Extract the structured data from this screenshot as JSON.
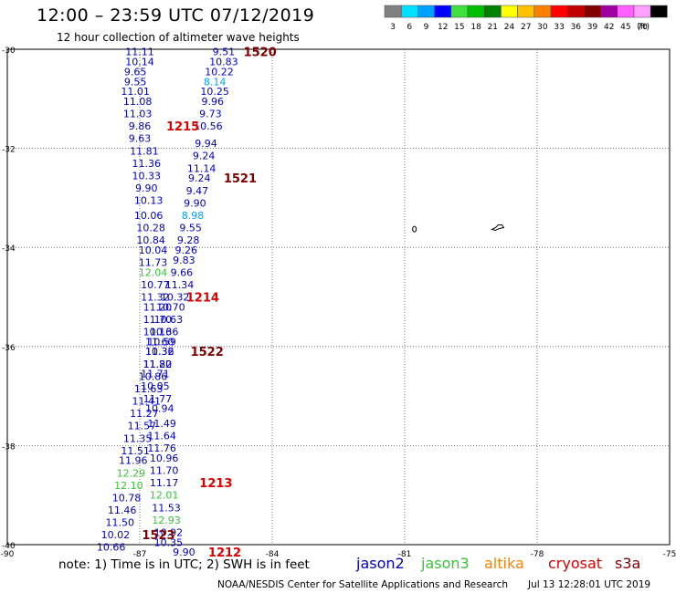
{
  "header": {
    "title": "12:00 – 23:59 UTC 07/12/2019",
    "subtitle": "12 hour collection of altimeter wave heights"
  },
  "legend": {
    "colors": [
      "#808080",
      "#00e0ff",
      "#00a0ff",
      "#0000ff",
      "#40e040",
      "#00c000",
      "#008000",
      "#ffff00",
      "#ffc000",
      "#ff8000",
      "#ff0000",
      "#c00000",
      "#800000",
      "#a000a0",
      "#ff60ff",
      "#ffa0ff",
      "#000000"
    ],
    "labels": [
      "3",
      "6",
      "9",
      "12",
      "15",
      "18",
      "21",
      "24",
      "27",
      "30",
      "33",
      "36",
      "39",
      "42",
      "45",
      "70",
      "(ft)"
    ]
  },
  "axes": {
    "lat_labels": [
      "-30",
      "-32",
      "-34",
      "-36",
      "-38",
      "-40"
    ],
    "lon_labels": [
      "-90",
      "-87",
      "-84",
      "-81",
      "-78",
      "-75"
    ]
  },
  "colors": {
    "jason2": "#0000c8",
    "jason3": "#30c830",
    "altika": "#ff8000",
    "cryosat": "#dd0000",
    "s3a": "#800000"
  },
  "observations": [
    {
      "lat": -30.05,
      "lon": -85.1,
      "v": "9.51",
      "sat": "jason2"
    },
    {
      "lat": -30.25,
      "lon": -85.1,
      "v": "10.83",
      "sat": "jason2"
    },
    {
      "lat": -30.45,
      "lon": -85.2,
      "v": "10.22",
      "sat": "jason2"
    },
    {
      "lat": -30.65,
      "lon": -85.3,
      "v": "8.14",
      "sat": "jason2"
    },
    {
      "lat": -30.85,
      "lon": -85.3,
      "v": "10.25",
      "sat": "jason2"
    },
    {
      "lat": -31.05,
      "lon": -85.35,
      "v": "9.96",
      "sat": "jason2"
    },
    {
      "lat": -31.3,
      "lon": -85.4,
      "v": "9.73",
      "sat": "jason2"
    },
    {
      "lat": -31.55,
      "lon": -85.45,
      "v": "10.56",
      "sat": "jason2"
    },
    {
      "lat": -31.9,
      "lon": -85.5,
      "v": "9.94",
      "sat": "jason2"
    },
    {
      "lat": -32.15,
      "lon": -85.55,
      "v": "9.24",
      "sat": "jason2"
    },
    {
      "lat": -32.4,
      "lon": -85.6,
      "v": "11.14",
      "sat": "jason2"
    },
    {
      "lat": -32.6,
      "lon": -85.65,
      "v": "9.24",
      "sat": "jason2"
    },
    {
      "lat": -32.85,
      "lon": -85.7,
      "v": "9.47",
      "sat": "jason2"
    },
    {
      "lat": -33.1,
      "lon": -85.75,
      "v": "9.90",
      "sat": "jason2"
    },
    {
      "lat": -33.35,
      "lon": -85.8,
      "v": "8.98",
      "sat": "jason2"
    },
    {
      "lat": -33.6,
      "lon": -85.85,
      "v": "9.55",
      "sat": "jason2"
    },
    {
      "lat": -33.85,
      "lon": -85.9,
      "v": "9.28",
      "sat": "jason2"
    },
    {
      "lat": -34.05,
      "lon": -85.95,
      "v": "9.26",
      "sat": "jason2"
    },
    {
      "lat": -34.25,
      "lon": -86.0,
      "v": "9.83",
      "sat": "jason2"
    },
    {
      "lat": -34.5,
      "lon": -86.05,
      "v": "9.66",
      "sat": "jason2"
    },
    {
      "lat": -34.75,
      "lon": -86.1,
      "v": "11.34",
      "sat": "jason2"
    },
    {
      "lat": -35.0,
      "lon": -86.2,
      "v": "10.32",
      "sat": "jason2"
    },
    {
      "lat": -35.2,
      "lon": -86.3,
      "v": "10.70",
      "sat": "jason2"
    },
    {
      "lat": -35.45,
      "lon": -86.35,
      "v": "10.63",
      "sat": "jason2"
    },
    {
      "lat": -35.7,
      "lon": -86.45,
      "v": "10.36",
      "sat": "jason2"
    },
    {
      "lat": -35.9,
      "lon": -86.5,
      "v": "10.59",
      "sat": "jason2"
    },
    {
      "lat": -36.1,
      "lon": -86.55,
      "v": "11.32",
      "sat": "jason2"
    },
    {
      "lat": -36.35,
      "lon": -86.6,
      "v": "11.82",
      "sat": "jason2"
    },
    {
      "lat": -36.55,
      "lon": -86.65,
      "v": "11.71",
      "sat": "jason2"
    },
    {
      "lat": -36.8,
      "lon": -86.65,
      "v": "10.05",
      "sat": "jason2"
    },
    {
      "lat": -37.05,
      "lon": -86.6,
      "v": "11.77",
      "sat": "jason2"
    },
    {
      "lat": -37.25,
      "lon": -86.55,
      "v": "10.94",
      "sat": "jason2"
    },
    {
      "lat": -37.55,
      "lon": -86.5,
      "v": "11.49",
      "sat": "jason2"
    },
    {
      "lat": -37.8,
      "lon": -86.5,
      "v": "11.64",
      "sat": "jason2"
    },
    {
      "lat": -38.05,
      "lon": -86.5,
      "v": "11.76",
      "sat": "jason2"
    },
    {
      "lat": -38.25,
      "lon": -86.45,
      "v": "10.96",
      "sat": "jason2"
    },
    {
      "lat": -38.5,
      "lon": -86.45,
      "v": "11.70",
      "sat": "jason2"
    },
    {
      "lat": -38.75,
      "lon": -86.45,
      "v": "11.17",
      "sat": "jason2"
    },
    {
      "lat": -39.0,
      "lon": -86.45,
      "v": "12.01",
      "sat": "jason3"
    },
    {
      "lat": -39.25,
      "lon": -86.4,
      "v": "11.53",
      "sat": "jason2"
    },
    {
      "lat": -39.5,
      "lon": -86.4,
      "v": "12.93",
      "sat": "jason3"
    },
    {
      "lat": -39.75,
      "lon": -86.35,
      "v": "10.92",
      "sat": "jason2"
    },
    {
      "lat": -39.95,
      "lon": -86.35,
      "v": "10.35",
      "sat": "jason2"
    },
    {
      "lat": -40.15,
      "lon": -86.0,
      "v": "9.90",
      "sat": "jason2"
    },
    {
      "lat": -30.05,
      "lon": -87.0,
      "v": "11.11",
      "sat": "jason2"
    },
    {
      "lat": -30.25,
      "lon": -87.0,
      "v": "10.14",
      "sat": "jason2"
    },
    {
      "lat": -30.45,
      "lon": -87.1,
      "v": "9.65",
      "sat": "jason2"
    },
    {
      "lat": -30.65,
      "lon": -87.1,
      "v": "9.55",
      "sat": "jason2"
    },
    {
      "lat": -30.85,
      "lon": -87.1,
      "v": "11.01",
      "sat": "jason2"
    },
    {
      "lat": -31.05,
      "lon": -87.05,
      "v": "11.08",
      "sat": "jason2"
    },
    {
      "lat": -31.3,
      "lon": -87.05,
      "v": "11.03",
      "sat": "jason2"
    },
    {
      "lat": -31.55,
      "lon": -87.0,
      "v": "9.86",
      "sat": "jason2"
    },
    {
      "lat": -31.8,
      "lon": -87.0,
      "v": "9.63",
      "sat": "jason2"
    },
    {
      "lat": -32.05,
      "lon": -86.9,
      "v": "11.81",
      "sat": "jason2"
    },
    {
      "lat": -32.3,
      "lon": -86.85,
      "v": "11.36",
      "sat": "jason2"
    },
    {
      "lat": -32.55,
      "lon": -86.85,
      "v": "10.33",
      "sat": "jason2"
    },
    {
      "lat": -32.8,
      "lon": -86.85,
      "v": "9.90",
      "sat": "jason2"
    },
    {
      "lat": -33.05,
      "lon": -86.8,
      "v": "10.13",
      "sat": "jason2"
    },
    {
      "lat": -33.35,
      "lon": -86.8,
      "v": "10.06",
      "sat": "jason2"
    },
    {
      "lat": -33.6,
      "lon": -86.75,
      "v": "10.28",
      "sat": "jason2"
    },
    {
      "lat": -33.85,
      "lon": -86.75,
      "v": "10.84",
      "sat": "jason2"
    },
    {
      "lat": -34.05,
      "lon": -86.7,
      "v": "10.04",
      "sat": "jason2"
    },
    {
      "lat": -34.3,
      "lon": -86.7,
      "v": "11.73",
      "sat": "jason2"
    },
    {
      "lat": -34.5,
      "lon": -86.7,
      "v": "12.04",
      "sat": "jason3"
    },
    {
      "lat": -34.75,
      "lon": -86.65,
      "v": "10.77",
      "sat": "jason2"
    },
    {
      "lat": -35.0,
      "lon": -86.65,
      "v": "11.32",
      "sat": "jason2"
    },
    {
      "lat": -35.2,
      "lon": -86.6,
      "v": "11.20",
      "sat": "jason2"
    },
    {
      "lat": -35.45,
      "lon": -86.6,
      "v": "11.70",
      "sat": "jason2"
    },
    {
      "lat": -35.7,
      "lon": -86.6,
      "v": "10.16",
      "sat": "jason2"
    },
    {
      "lat": -35.9,
      "lon": -86.55,
      "v": "11.60",
      "sat": "jason2"
    },
    {
      "lat": -36.1,
      "lon": -86.55,
      "v": "10.36",
      "sat": "jason2"
    },
    {
      "lat": -36.35,
      "lon": -86.6,
      "v": "11.20",
      "sat": "jason2"
    },
    {
      "lat": -36.6,
      "lon": -86.7,
      "v": "10.86",
      "sat": "jason2"
    },
    {
      "lat": -36.85,
      "lon": -86.8,
      "v": "11.63",
      "sat": "jason2"
    },
    {
      "lat": -37.1,
      "lon": -86.85,
      "v": "11.41",
      "sat": "jason2"
    },
    {
      "lat": -37.35,
      "lon": -86.9,
      "v": "11.27",
      "sat": "jason2"
    },
    {
      "lat": -37.6,
      "lon": -86.95,
      "v": "11.57",
      "sat": "jason2"
    },
    {
      "lat": -37.85,
      "lon": -87.05,
      "v": "11.35",
      "sat": "jason2"
    },
    {
      "lat": -38.1,
      "lon": -87.1,
      "v": "11.51",
      "sat": "jason2"
    },
    {
      "lat": -38.3,
      "lon": -87.15,
      "v": "11.96",
      "sat": "jason2"
    },
    {
      "lat": -38.55,
      "lon": -87.2,
      "v": "12.29",
      "sat": "jason3"
    },
    {
      "lat": -38.8,
      "lon": -87.25,
      "v": "12.10",
      "sat": "jason3"
    },
    {
      "lat": -39.05,
      "lon": -87.3,
      "v": "10.78",
      "sat": "jason2"
    },
    {
      "lat": -39.3,
      "lon": -87.4,
      "v": "11.46",
      "sat": "jason2"
    },
    {
      "lat": -39.55,
      "lon": -87.45,
      "v": "11.50",
      "sat": "jason2"
    },
    {
      "lat": -39.8,
      "lon": -87.55,
      "v": "10.02",
      "sat": "jason2"
    },
    {
      "lat": -40.05,
      "lon": -87.65,
      "v": "10.66",
      "sat": "jason2"
    }
  ],
  "pass_labels": [
    {
      "lat": -30.05,
      "lon": -84.65,
      "v": "1520",
      "sat": "s3a"
    },
    {
      "lat": -31.55,
      "lon": -86.4,
      "v": "1215",
      "sat": "cryosat"
    },
    {
      "lat": -32.6,
      "lon": -85.1,
      "v": "1521",
      "sat": "s3a"
    },
    {
      "lat": -35.0,
      "lon": -85.95,
      "v": "1214",
      "sat": "cryosat"
    },
    {
      "lat": -36.1,
      "lon": -85.85,
      "v": "1522",
      "sat": "s3a"
    },
    {
      "lat": -38.75,
      "lon": -85.65,
      "v": "1213",
      "sat": "cryosat"
    },
    {
      "lat": -39.8,
      "lon": -86.95,
      "v": "1523",
      "sat": "s3a"
    },
    {
      "lat": -40.15,
      "lon": -85.45,
      "v": "1212",
      "sat": "cryosat"
    }
  ],
  "note": "note: 1) Time is in UTC; 2) SWH is in feet",
  "satellites": [
    {
      "key": "jason2",
      "label": "jason2"
    },
    {
      "key": "jason3",
      "label": "jason3"
    },
    {
      "key": "altika",
      "label": "altika"
    },
    {
      "key": "cryosat",
      "label": "cryosat"
    },
    {
      "key": "s3a",
      "label": "s3a"
    }
  ],
  "footer": {
    "credit": "NOAA/NESDIS Center for Satellite Applications and Research",
    "timestamp": "Jul 13 12:28:01 UTC 2019"
  }
}
